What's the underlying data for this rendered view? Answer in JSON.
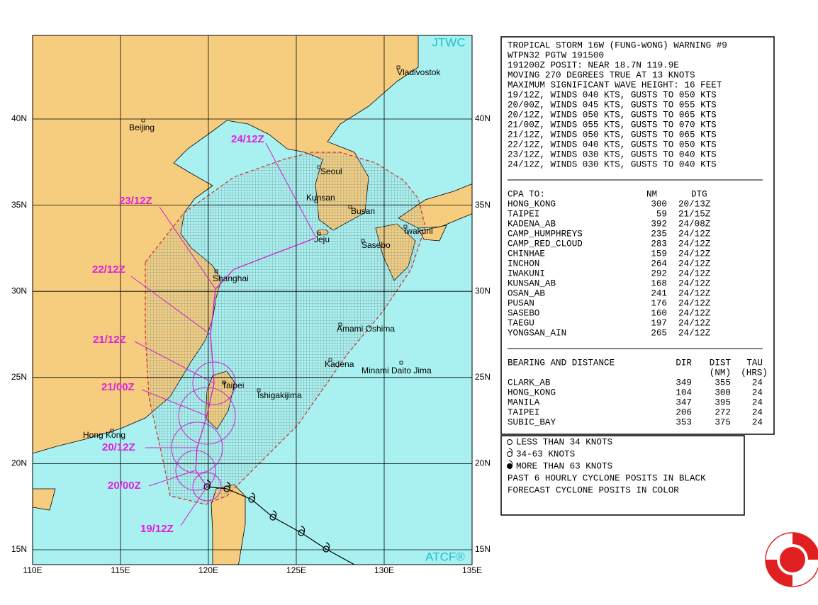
{
  "map": {
    "badge_top": "JTWC",
    "badge_bottom": "ATCF®",
    "lat_labels": [
      "40N",
      "35N",
      "30N",
      "25N",
      "20N",
      "15N"
    ],
    "lon_labels": [
      "110E",
      "115E",
      "120E",
      "125E",
      "130E",
      "135E"
    ],
    "cities": [
      "Beijing",
      "Vladivostok",
      "Seoul",
      "Kunsan",
      "Busan",
      "Jeju",
      "Iwakuni",
      "Sasebo",
      "Shanghai",
      "Amami Oshima",
      "Kadena",
      "Minami Daito Jima",
      "Taipei",
      "Ishigakijima",
      "Hong Kong"
    ],
    "forecast_labels": [
      "24/12Z",
      "23/12Z",
      "22/12Z",
      "21/12Z",
      "21/00Z",
      "20/12Z",
      "20/00Z",
      "19/12Z"
    ]
  },
  "warning": {
    "lines": [
      "TROPICAL STORM 16W (FUNG-WONG) WARNING #9",
      "WTPN32 PGTW 191500",
      "191200Z POSIT: NEAR 18.7N 119.9E",
      "MOVING 270 DEGREES TRUE AT 13 KNOTS",
      "MAXIMUM SIGNIFICANT WAVE HEIGHT: 16 FEET",
      "19/12Z, WINDS 040 KTS, GUSTS TO 050 KTS",
      "20/00Z, WINDS 045 KTS, GUSTS TO 055 KTS",
      "20/12Z, WINDS 050 KTS, GUSTS TO 065 KTS",
      "21/00Z, WINDS 055 KTS, GUSTS TO 070 KTS",
      "21/12Z, WINDS 050 KTS, GUSTS TO 065 KTS",
      "22/12Z, WINDS 040 KTS, GUSTS TO 050 KTS",
      "23/12Z, WINDS 030 KTS, GUSTS TO 040 KTS",
      "24/12Z, WINDS 030 KTS, GUSTS TO 040 KTS"
    ],
    "cpa": {
      "header": [
        "CPA TO:",
        "NM",
        "DTG"
      ],
      "rows": [
        [
          "HONG_KONG",
          "300",
          "20/13Z"
        ],
        [
          "TAIPEI",
          "59",
          "21/15Z"
        ],
        [
          "KADENA_AB",
          "392",
          "24/08Z"
        ],
        [
          "CAMP_HUMPHREYS",
          "235",
          "24/12Z"
        ],
        [
          "CAMP_RED_CLOUD",
          "283",
          "24/12Z"
        ],
        [
          "CHINHAE",
          "159",
          "24/12Z"
        ],
        [
          "INCHON",
          "264",
          "24/12Z"
        ],
        [
          "IWAKUNI",
          "292",
          "24/12Z"
        ],
        [
          "KUNSAN_AB",
          "168",
          "24/12Z"
        ],
        [
          "OSAN_AB",
          "241",
          "24/12Z"
        ],
        [
          "PUSAN",
          "176",
          "24/12Z"
        ],
        [
          "SASEBO",
          "160",
          "24/12Z"
        ],
        [
          "TAEGU",
          "197",
          "24/12Z"
        ],
        [
          "YONGSAN_AIN",
          "265",
          "24/12Z"
        ]
      ]
    },
    "bearing": {
      "header": [
        "BEARING AND DISTANCE",
        "DIR",
        "DIST",
        "TAU"
      ],
      "subheader": [
        "(NM)",
        "(HRS)"
      ],
      "rows": [
        [
          "CLARK_AB",
          "349",
          "355",
          "24"
        ],
        [
          "HONG_KONG",
          "104",
          "300",
          "24"
        ],
        [
          "MANILA",
          "347",
          "395",
          "24"
        ],
        [
          "TAIPEI",
          "206",
          "272",
          "24"
        ],
        [
          "SUBIC_BAY",
          "353",
          "375",
          "24"
        ]
      ]
    }
  },
  "legend": {
    "lines": [
      "LESS THAN 34 KNOTS",
      "34-63 KNOTS",
      "MORE THAN 63 KNOTS",
      "PAST 6 HOURLY CYCLONE POSITS IN BLACK",
      "FORECAST CYCLONE POSITS IN COLOR"
    ]
  }
}
